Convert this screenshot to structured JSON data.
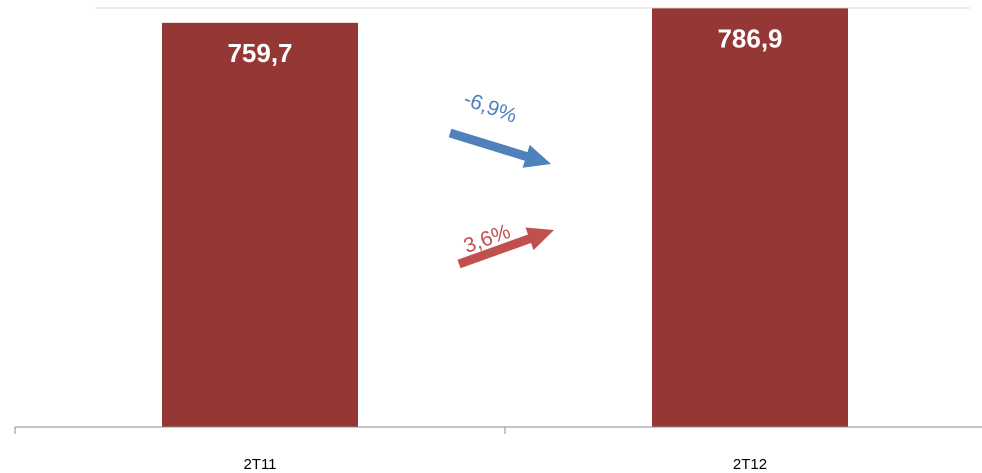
{
  "chart_data": {
    "type": "bar",
    "categories": [
      "2T11",
      "2T12"
    ],
    "values": [
      759.7,
      786.9
    ],
    "value_labels": [
      "759,7",
      "786,9"
    ],
    "bar_color": "#953735",
    "annotations": [
      {
        "text": "-6,9%",
        "direction": "down",
        "color": "#4F81BD"
      },
      {
        "text": "3,6%",
        "direction": "up",
        "color": "#C0504D"
      }
    ]
  }
}
